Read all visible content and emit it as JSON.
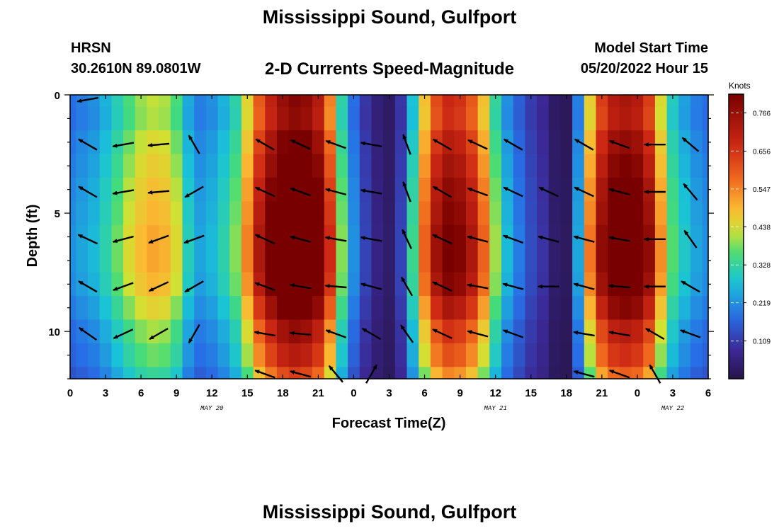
{
  "page": {
    "title_top": "Mississippi Sound, Gulfport",
    "title_bottom": "Mississippi Sound, Gulfport",
    "station": "HRSN",
    "coords": "30.2610N  89.0801W",
    "subtitle": "2-D Currents Speed-Magnitude",
    "model_start_label": "Model Start Time",
    "model_start_value": "05/20/2022 Hour 15"
  },
  "chart_data": {
    "type": "heatmap",
    "title": "2-D Currents Speed-Magnitude",
    "xlabel": "Forecast Time(Z)",
    "ylabel": "Depth (ft)",
    "x_range_hours": [
      0,
      54
    ],
    "y_range_ft": [
      0,
      12
    ],
    "y_inverted": true,
    "x_tick_hours": [
      0,
      3,
      6,
      9,
      12,
      15,
      18,
      21,
      24,
      27,
      30,
      33,
      36,
      39,
      42,
      45,
      48,
      51,
      54
    ],
    "x_tick_labels": [
      "0",
      "3",
      "6",
      "9",
      "12",
      "15",
      "18",
      "21",
      "0",
      "3",
      "6",
      "9",
      "12",
      "15",
      "18",
      "21",
      "0",
      "3",
      "6"
    ],
    "y_tick_values": [
      0,
      5,
      10
    ],
    "y_tick_labels": [
      "0",
      "5",
      "10"
    ],
    "date_labels": [
      {
        "hour": 12,
        "text": "MAY 20"
      },
      {
        "hour": 36,
        "text": "MAY 21"
      },
      {
        "hour": 51,
        "text": "MAY 22"
      }
    ],
    "colorbar": {
      "unit": "Knots",
      "min": 0.0,
      "max": 0.82,
      "ticks": [
        0.109,
        0.219,
        0.328,
        0.438,
        0.547,
        0.656,
        0.766
      ],
      "tick_labels": [
        "0.109",
        "0.219",
        "0.328",
        "0.438",
        "0.547",
        "0.656",
        "0.766"
      ]
    },
    "speed_grid": {
      "x_hours": [
        0,
        1,
        2,
        3,
        4,
        5,
        6,
        7,
        8,
        9,
        10,
        11,
        12,
        13,
        14,
        15,
        16,
        17,
        18,
        19,
        20,
        21,
        22,
        23,
        24,
        25,
        26,
        27,
        28,
        29,
        30,
        31,
        32,
        33,
        34,
        35,
        36,
        37,
        38,
        39,
        40,
        41,
        42,
        43,
        44,
        45,
        46,
        47,
        48,
        49,
        50,
        51,
        52,
        53,
        54
      ],
      "depths_ft": [
        0,
        1,
        2,
        3,
        4,
        5,
        6,
        7,
        8,
        9,
        10,
        11,
        12
      ],
      "surface_profile": [
        0.18,
        0.2,
        0.22,
        0.26,
        0.31,
        0.36,
        0.4,
        0.42,
        0.41,
        0.36,
        0.25,
        0.2,
        0.22,
        0.26,
        0.32,
        0.45,
        0.6,
        0.7,
        0.77,
        0.8,
        0.78,
        0.72,
        0.55,
        0.32,
        0.18,
        0.1,
        0.05,
        0.03,
        0.1,
        0.28,
        0.48,
        0.62,
        0.68,
        0.66,
        0.6,
        0.48,
        0.33,
        0.22,
        0.16,
        0.11,
        0.08,
        0.03,
        0.02,
        0.2,
        0.46,
        0.64,
        0.72,
        0.74,
        0.72,
        0.64,
        0.44,
        0.3,
        0.24,
        0.2,
        0.18
      ],
      "depth_multiplier": [
        1.0,
        0.98,
        1.05,
        1.1,
        1.15,
        1.18,
        1.22,
        1.22,
        1.18,
        1.08,
        0.97,
        0.9,
        0.8
      ]
    },
    "vectors": {
      "x_hours": [
        1.5,
        4.5,
        7.5,
        10.5,
        13.5,
        16.5,
        19.5,
        22.5,
        25.5,
        28.5,
        31.5,
        34.5,
        37.5,
        40.5,
        43.5,
        46.5,
        49.5,
        52.5
      ],
      "depths_ft": [
        0.2,
        2.1,
        4.1,
        6.1,
        8.1,
        10.1,
        11.8
      ],
      "angle_deg": [
        [
          190,
          null,
          null,
          null,
          null,
          null,
          null,
          null,
          null,
          null,
          null,
          null,
          null,
          null,
          null,
          null,
          null,
          null
        ],
        [
          150,
          190,
          185,
          120,
          null,
          150,
          155,
          160,
          170,
          110,
          150,
          155,
          150,
          null,
          150,
          160,
          180,
          140
        ],
        [
          150,
          190,
          185,
          210,
          null,
          155,
          160,
          165,
          170,
          110,
          150,
          160,
          155,
          155,
          155,
          165,
          180,
          130
        ],
        [
          155,
          195,
          200,
          200,
          null,
          155,
          165,
          170,
          170,
          115,
          155,
          165,
          160,
          165,
          165,
          170,
          180,
          125
        ],
        [
          150,
          200,
          205,
          210,
          null,
          160,
          170,
          175,
          165,
          120,
          155,
          170,
          165,
          180,
          165,
          175,
          180,
          150
        ],
        [
          145,
          205,
          210,
          240,
          null,
          170,
          175,
          160,
          150,
          125,
          155,
          165,
          160,
          null,
          170,
          170,
          150,
          160
        ],
        [
          null,
          null,
          null,
          null,
          null,
          160,
          165,
          130,
          60,
          null,
          null,
          null,
          null,
          null,
          165,
          160,
          120,
          null
        ]
      ]
    }
  }
}
